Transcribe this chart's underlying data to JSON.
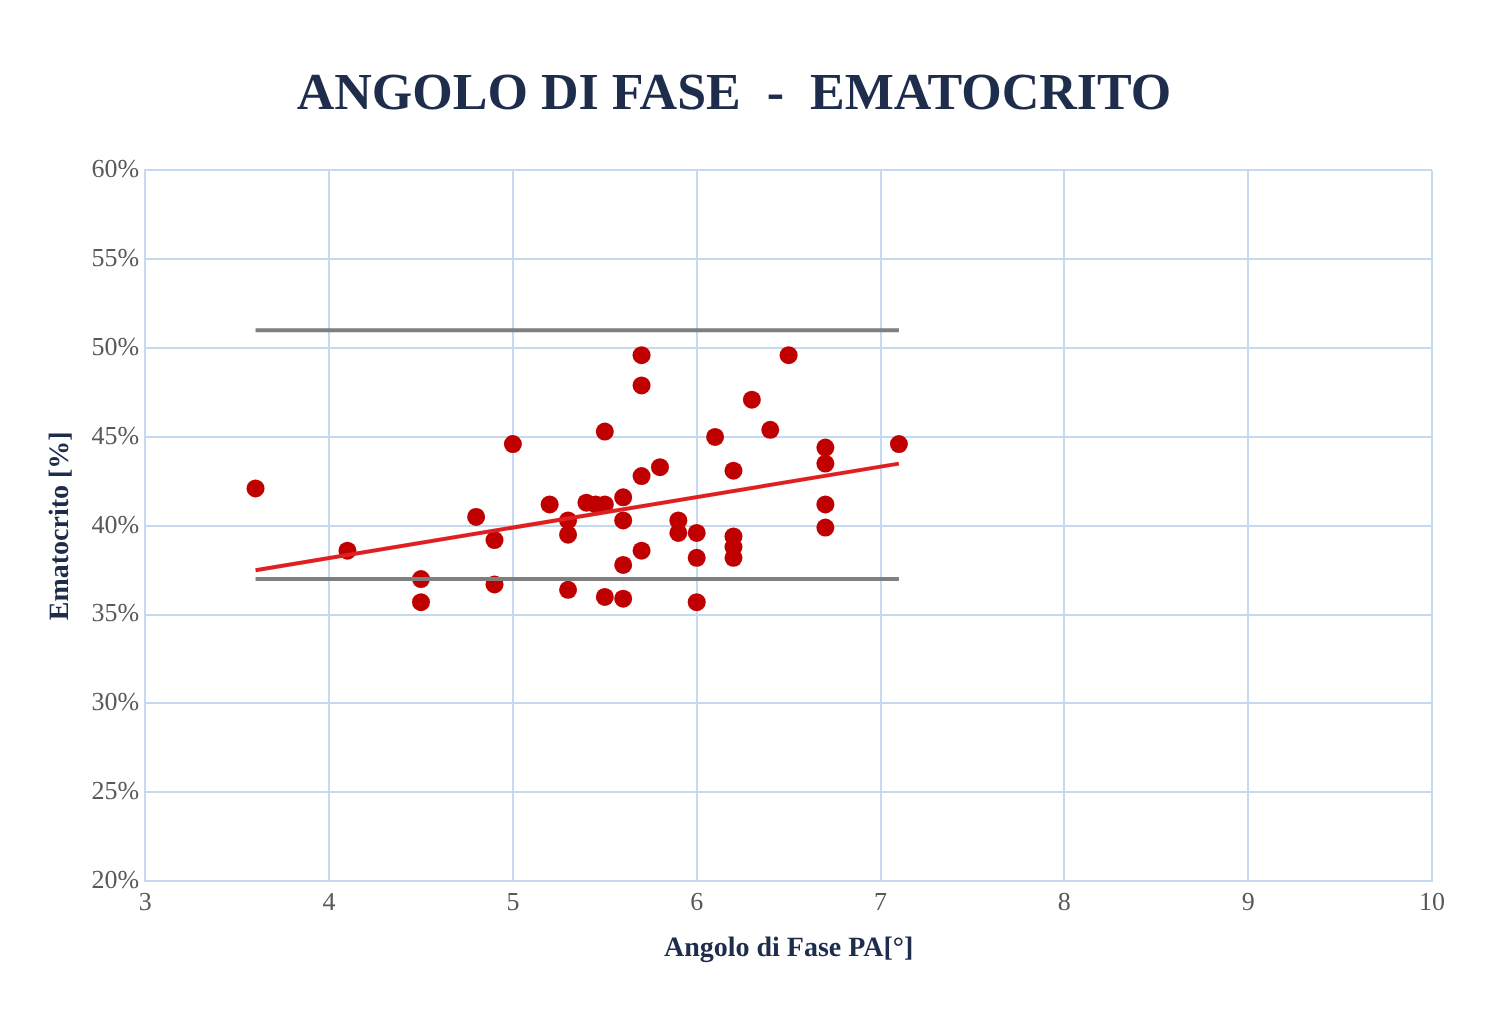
{
  "chart_data": {
    "type": "scatter",
    "title": "ANGOLO DI FASE  -  EMATOCRITO",
    "xlabel": "Angolo di Fase PA[°]",
    "ylabel": "Ematocrito [%]",
    "xlim": [
      3,
      10
    ],
    "xticks": [
      3,
      4,
      5,
      6,
      7,
      8,
      9,
      10
    ],
    "ylim": [
      20,
      60
    ],
    "yticks": [
      {
        "value": 20,
        "label": "20%"
      },
      {
        "value": 25,
        "label": "25%"
      },
      {
        "value": 30,
        "label": "30%"
      },
      {
        "value": 35,
        "label": "35%"
      },
      {
        "value": 40,
        "label": "40%"
      },
      {
        "value": 45,
        "label": "45%"
      },
      {
        "value": 50,
        "label": "50%"
      },
      {
        "value": 55,
        "label": "55%"
      },
      {
        "value": 60,
        "label": "60%"
      }
    ],
    "grid": true,
    "legend": false,
    "series": [
      {
        "type": "line",
        "marker": "none",
        "color": "#7f7f7f",
        "x": [
          3.6,
          7.1
        ],
        "values": [
          51,
          51
        ]
      },
      {
        "type": "line",
        "marker": "none",
        "color": "#7f7f7f",
        "x": [
          3.6,
          7.1
        ],
        "values": [
          37,
          37
        ]
      },
      {
        "type": "line",
        "marker": "none",
        "color": "#e02020",
        "x": [
          3.6,
          7.1
        ],
        "values": [
          37.5,
          43.5
        ]
      },
      {
        "type": "scatter",
        "marker": "circle",
        "color": "#c00000",
        "x": [
          3.6,
          4.1,
          4.5,
          4.5,
          4.8,
          4.9,
          4.9,
          5.0,
          5.2,
          5.3,
          5.3,
          5.3,
          5.4,
          5.45,
          5.5,
          5.5,
          5.5,
          5.6,
          5.6,
          5.6,
          5.6,
          5.7,
          5.7,
          5.7,
          5.7,
          5.8,
          5.9,
          5.9,
          6.0,
          6.0,
          6.0,
          6.1,
          6.2,
          6.2,
          6.2,
          6.2,
          6.3,
          6.4,
          6.5,
          6.7,
          6.7,
          6.7,
          6.7,
          7.1
        ],
        "values": [
          42.1,
          38.6,
          37.0,
          35.7,
          40.5,
          39.2,
          36.7,
          44.6,
          41.2,
          40.3,
          39.5,
          36.4,
          41.3,
          41.2,
          45.3,
          41.2,
          36.0,
          41.6,
          40.3,
          37.8,
          35.9,
          49.6,
          47.9,
          42.8,
          38.6,
          43.3,
          40.3,
          39.6,
          39.6,
          38.2,
          35.7,
          45.0,
          43.1,
          39.4,
          38.8,
          38.2,
          47.1,
          45.4,
          49.6,
          44.4,
          43.5,
          41.2,
          39.9,
          44.6
        ]
      }
    ]
  }
}
